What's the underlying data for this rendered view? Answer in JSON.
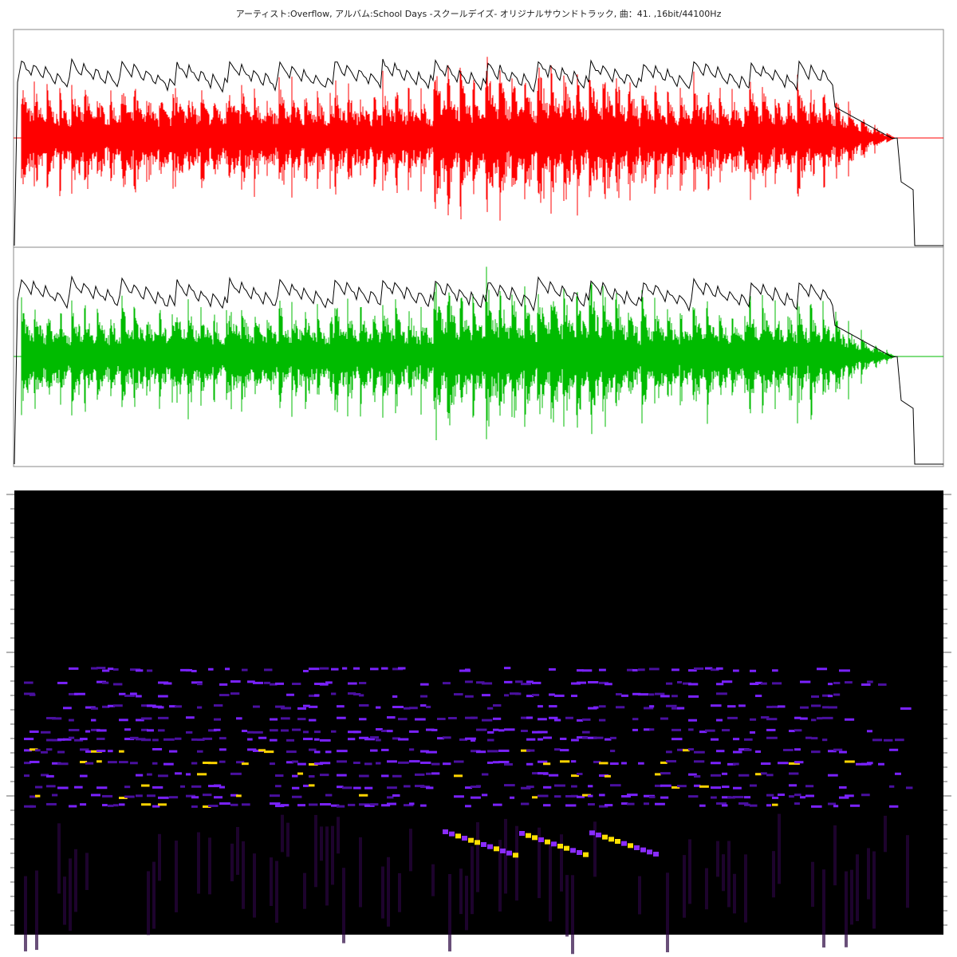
{
  "header": {
    "title": "アーティスト:Overflow, アルバム:School Days -スクールデイズ- オリジナルサウンドトラック, 曲：41. ,16bit/44100Hz"
  }
}
